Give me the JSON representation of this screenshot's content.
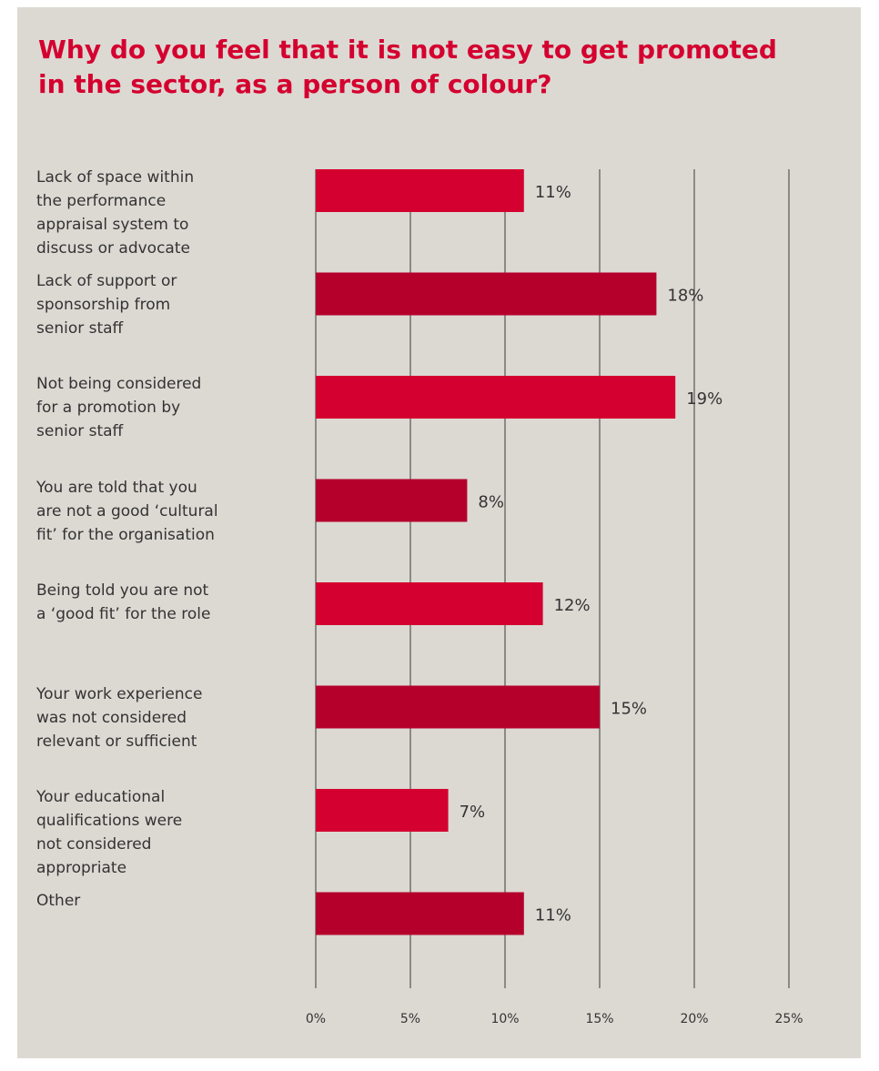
{
  "chart_data": {
    "type": "bar",
    "orientation": "horizontal",
    "title": "Why do you feel that it is not easy to get promoted in the sector, as a person of colour?",
    "categories": [
      "Lack of space within\nthe performance\nappraisal system to\ndiscuss or advocate",
      "Lack of support or\nsponsorship from\nsenior staff",
      "Not being considered\nfor a promotion by\nsenior staff",
      "You are told that you\nare not a good ‘cultural\nfit’ for the organisation",
      "Being told you are not\na ‘good fit’ for the role",
      "Your work experience\nwas not considered\nrelevant or sufficient",
      "Your educational\nqualifications were\nnot considered\nappropriate",
      "Other"
    ],
    "values": [
      11,
      18,
      19,
      8,
      12,
      15,
      7,
      11
    ],
    "value_labels": [
      "11%",
      "18%",
      "19%",
      "8%",
      "12%",
      "15%",
      "7%",
      "11%"
    ],
    "xlim": [
      0,
      25
    ],
    "ticks": [
      0,
      5,
      10,
      15,
      20,
      25
    ],
    "tick_labels": [
      "0%",
      "5%",
      "10%",
      "15%",
      "20%",
      "25%"
    ],
    "grid": true,
    "legend": "none",
    "colors": [
      "#d4002f",
      "#b5002c"
    ]
  }
}
